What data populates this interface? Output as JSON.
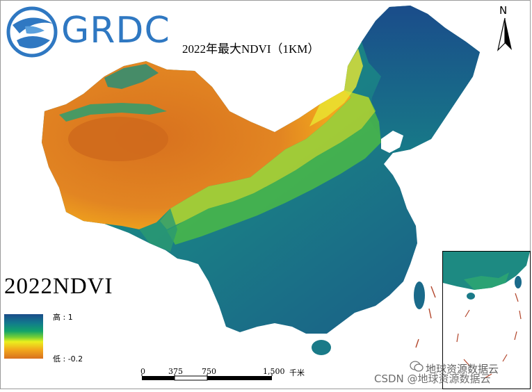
{
  "logo": {
    "text": "GRDC"
  },
  "map": {
    "title": "2022年最大NDVI（1KM）",
    "big_label": "2022NDVI"
  },
  "legend": {
    "high_label": "高 : 1",
    "low_label": "低 : -0.2",
    "colors": [
      "#1a4c8a",
      "#127a8c",
      "#12a36a",
      "#78d034",
      "#eaf01e",
      "#f2a81c",
      "#d8711e"
    ]
  },
  "north_arrow": {
    "label": "N"
  },
  "scale_bar": {
    "ticks": [
      "0",
      "375",
      "750",
      "1,500"
    ],
    "unit": "千米"
  },
  "watermark": {
    "brand": "地球资源数据云",
    "csdn": "CSDN @地球资源数据云"
  }
}
